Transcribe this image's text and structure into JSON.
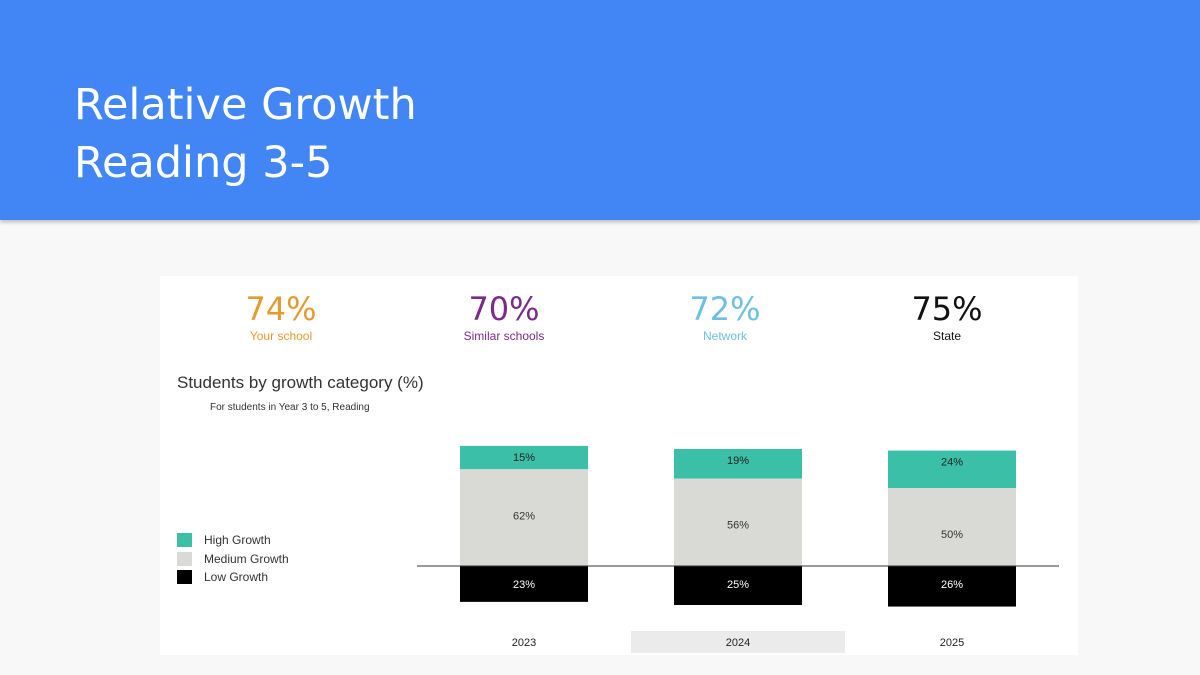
{
  "slide": {
    "title_line1": "Relative Growth",
    "title_line2": "Reading 3-5"
  },
  "summary": [
    {
      "value": "74%",
      "label": "Your school",
      "color": "#e59a2e"
    },
    {
      "value": "70%",
      "label": "Similar schools",
      "color": "#7b2a8c"
    },
    {
      "value": "72%",
      "label": "Network",
      "color": "#6fc0e0"
    },
    {
      "value": "75%",
      "label": "State",
      "color": "#111111"
    }
  ],
  "legend": [
    {
      "label": "High Growth",
      "color": "#3bbfa7"
    },
    {
      "label": "Medium Growth",
      "color": "#d9d9d6"
    },
    {
      "label": "Low Growth",
      "color": "#000000"
    }
  ],
  "chart_data": {
    "type": "bar",
    "stacked": true,
    "title": "Students by growth category (%)",
    "subtitle": "For students in Year 3 to 5, Reading",
    "categories": [
      "2023",
      "2024",
      "2025"
    ],
    "highlighted_category": "2024",
    "baseline": "between Low Growth (below) and Medium Growth (above)",
    "series": [
      {
        "name": "High Growth",
        "values": [
          15,
          19,
          24
        ],
        "labels": [
          "15%",
          "19%",
          "24%"
        ],
        "color": "#3bbfa7"
      },
      {
        "name": "Medium Growth",
        "values": [
          62,
          56,
          50
        ],
        "labels": [
          "62%",
          "56%",
          "50%"
        ],
        "color": "#d9d9d6"
      },
      {
        "name": "Low Growth",
        "values": [
          23,
          25,
          26
        ],
        "labels": [
          "23%",
          "25%",
          "26%"
        ],
        "color": "#000000"
      }
    ]
  }
}
